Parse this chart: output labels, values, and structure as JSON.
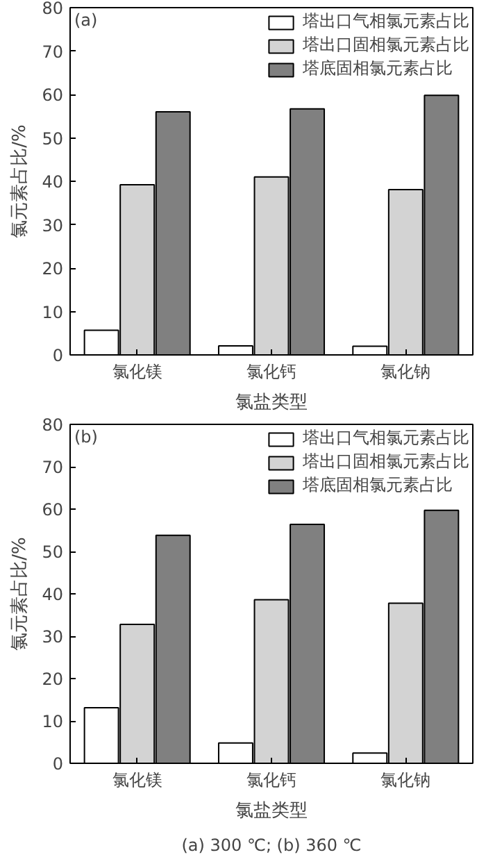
{
  "chart_data": [
    {
      "type": "bar",
      "xlabel": "氯盐类型",
      "ylabel": "氯元素占比/%",
      "categories": [
        "氯化镁",
        "氯化钙",
        "氯化钠"
      ],
      "series": [
        {
          "name": "塔出口气相氯元素占比",
          "color": "#ffffff",
          "values": [
            5.7,
            2.1,
            2.0
          ]
        },
        {
          "name": "塔出口固相氯元素占比",
          "color": "#d3d3d3",
          "values": [
            39.2,
            41.0,
            38.1
          ]
        },
        {
          "name": "塔底固相氯元素占比",
          "color": "#808080",
          "values": [
            56.0,
            56.7,
            59.8
          ]
        }
      ],
      "ylim": [
        0,
        80
      ],
      "yticks": [
        0,
        10,
        20,
        30,
        40,
        50,
        60,
        70,
        80
      ],
      "legend": "top right",
      "grid": false,
      "annotations": [
        "(a)"
      ]
    },
    {
      "type": "bar",
      "xlabel": "氯盐类型",
      "ylabel": "氯元素占比/%",
      "categories": [
        "氯化镁",
        "氯化钙",
        "氯化钠"
      ],
      "series": [
        {
          "name": "塔出口气相氯元素占比",
          "color": "#ffffff",
          "values": [
            13.1,
            4.8,
            2.4
          ]
        },
        {
          "name": "塔出口固相氯元素占比",
          "color": "#d3d3d3",
          "values": [
            32.8,
            38.6,
            37.8
          ]
        },
        {
          "name": "塔底固相氯元素占比",
          "color": "#808080",
          "values": [
            53.8,
            56.4,
            59.7
          ]
        }
      ],
      "ylim": [
        0,
        80
      ],
      "yticks": [
        0,
        10,
        20,
        30,
        40,
        50,
        60,
        70,
        80
      ],
      "legend": "top right",
      "grid": false,
      "annotations": [
        "(b)",
        "(a) 300 ℃; (b) 360 ℃"
      ]
    }
  ]
}
